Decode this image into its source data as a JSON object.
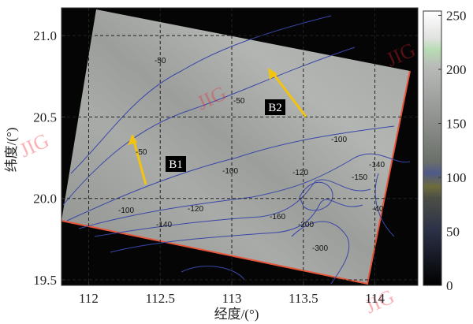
{
  "axes": {
    "x_label": "经度/(°)",
    "y_label": "纬度/(°)",
    "xlim": [
      111.81,
      114.3
    ],
    "ylim": [
      19.466,
      21.17
    ],
    "xticks": [
      112,
      112.5,
      113,
      113.5,
      114
    ],
    "yticks": [
      {
        "value": 19.5,
        "label": "19.5"
      },
      {
        "value": 20,
        "label": "20.0"
      },
      {
        "value": 20.5,
        "label": "20.5"
      },
      {
        "value": 21,
        "label": "21.0"
      }
    ]
  },
  "colorbar": {
    "lim": [
      0,
      254
    ],
    "ticks": [
      0,
      50,
      100,
      150,
      200,
      250
    ]
  },
  "annotations": [
    "B1",
    "B2"
  ],
  "contour_labels": [
    "-50",
    "-50",
    "-50",
    "-100",
    "-100",
    "-100",
    "-120",
    "-120",
    "-140",
    "-160",
    "-200",
    "-300",
    "-140",
    "-150",
    "-40"
  ],
  "watermark": "JIG"
}
